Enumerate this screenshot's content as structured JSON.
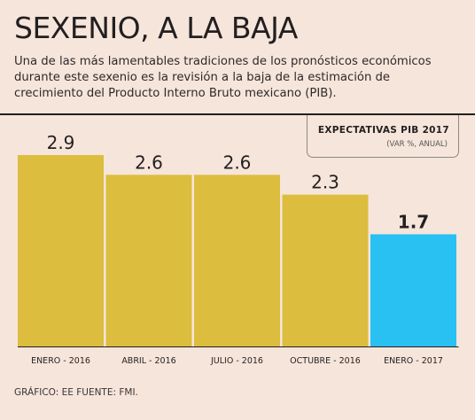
{
  "header": {
    "title": "SEXENIO, A LA BAJA",
    "subtitle": "Una de las más lamentables tradiciones de los pronósticos económicos durante este sexenio es la revisión a la baja de la estimación de crecimiento del Producto Interno Bruto mexicano (PIB)."
  },
  "legend": {
    "title": "EXPECTATIVAS PIB  2017",
    "subtitle": "(VAR %, ANUAL)"
  },
  "footer": {
    "source": "GRÁFICO: EE  FUENTE: FMI."
  },
  "colors": {
    "bar": "#dcbd3e",
    "highlight": "#29c1f2",
    "axis": "#231f20"
  },
  "chart_data": {
    "type": "bar",
    "title": "EXPECTATIVAS PIB  2017",
    "ylabel": "(VAR %, ANUAL)",
    "categories": [
      "ENERO - 2016",
      "ABRIL - 2016",
      "JULIO - 2016",
      "OCTUBRE - 2016",
      "ENERO - 2017"
    ],
    "values": [
      2.9,
      2.6,
      2.6,
      2.3,
      1.7
    ],
    "value_labels": [
      "2.9",
      "2.6",
      "2.6",
      "2.3",
      "1.7"
    ],
    "highlight_index": 4,
    "ylim": [
      0,
      2.9
    ],
    "grid": false,
    "legend_position": "top-right"
  }
}
